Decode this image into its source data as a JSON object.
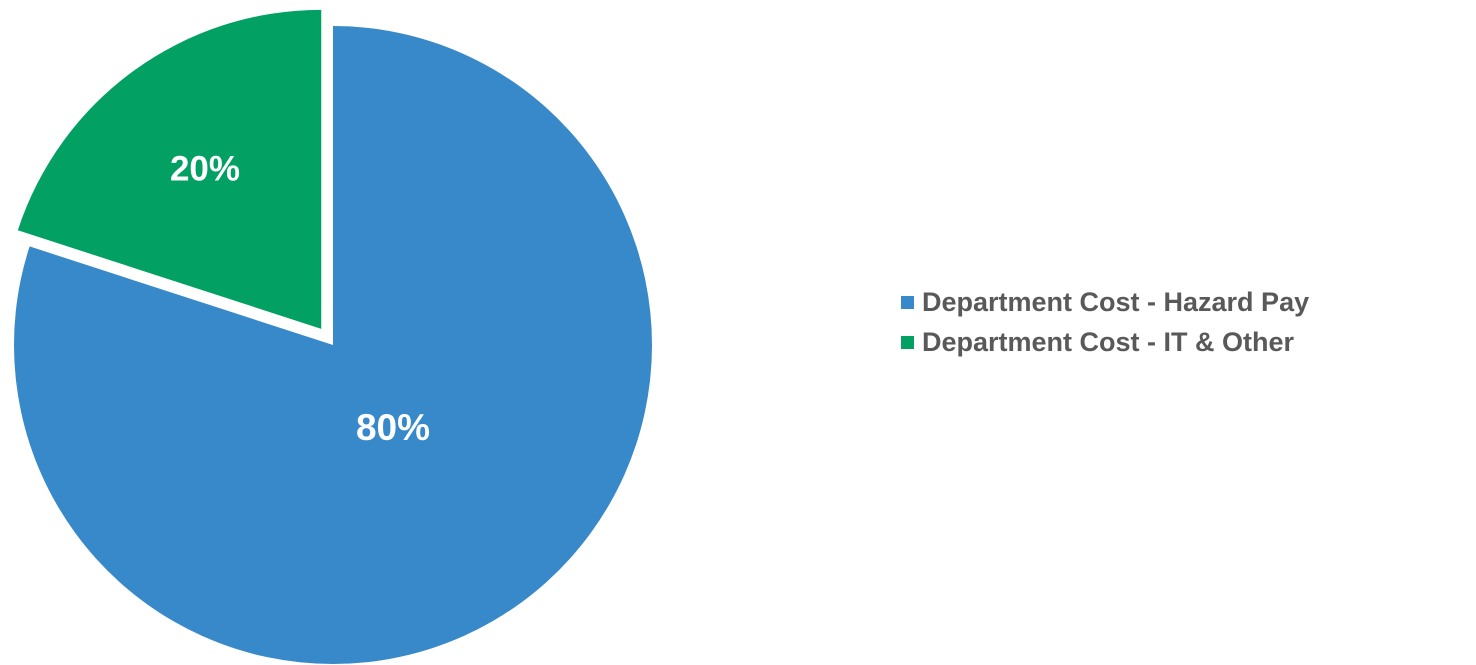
{
  "chart_data": {
    "type": "pie",
    "categories": [
      "Department Cost - Hazard Pay",
      "Department Cost - IT & Other"
    ],
    "values": [
      80,
      20
    ],
    "data_labels": [
      "80%",
      "20%"
    ],
    "colors": [
      "#3889c9",
      "#02a062"
    ],
    "exploded_slice": "Department Cost - IT & Other",
    "legend_position": "right",
    "title": ""
  }
}
